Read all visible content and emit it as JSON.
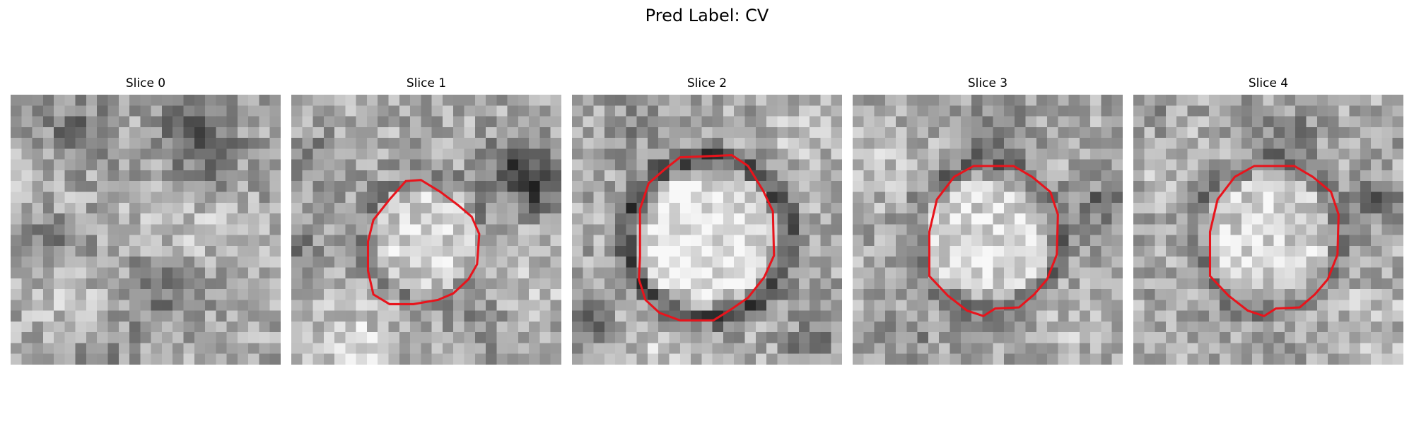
{
  "figure": {
    "title": "Pred Label: CV",
    "contour_color": "#e8141c"
  },
  "slices": [
    {
      "title": "Slice 0",
      "has_contour": false,
      "contour": [],
      "seed": 11,
      "ring_darkness": 0,
      "core_brightness": 0,
      "dark_spots": [
        {
          "x": 6,
          "y": 4,
          "r": 3.5,
          "s": 60
        },
        {
          "x": 17,
          "y": 2,
          "r": 3.0,
          "s": 60
        },
        {
          "x": 18,
          "y": 6,
          "r": 3.5,
          "s": 55
        },
        {
          "x": 4,
          "y": 13,
          "r": 4.0,
          "s": 35
        },
        {
          "x": 14,
          "y": 18,
          "r": 4.0,
          "s": 45
        },
        {
          "x": 8,
          "y": 24,
          "r": 3.0,
          "s": 40
        }
      ],
      "bright_spots": [
        {
          "x": 4,
          "y": 8,
          "r": 4.0,
          "s": 30
        },
        {
          "x": 16,
          "y": 13,
          "r": 4.5,
          "s": 35
        },
        {
          "x": 6,
          "y": 19,
          "r": 3.5,
          "s": 30
        }
      ]
    },
    {
      "title": "Slice 1",
      "has_contour": true,
      "contour": [
        [
          10.6,
          8.0
        ],
        [
          12.0,
          7.9
        ],
        [
          13.8,
          9.0
        ],
        [
          15.4,
          10.2
        ],
        [
          16.7,
          11.3
        ],
        [
          17.4,
          12.9
        ],
        [
          17.2,
          15.7
        ],
        [
          16.4,
          17.1
        ],
        [
          15.0,
          18.4
        ],
        [
          13.6,
          19.0
        ],
        [
          11.3,
          19.4
        ],
        [
          9.1,
          19.4
        ],
        [
          7.6,
          18.5
        ],
        [
          7.1,
          16.3
        ],
        [
          7.1,
          13.6
        ],
        [
          7.6,
          11.6
        ],
        [
          9.1,
          9.7
        ]
      ],
      "seed": 23,
      "ring_darkness": 35,
      "core_brightness": 45,
      "dark_spots": [
        {
          "x": 21,
          "y": 7,
          "r": 2.8,
          "s": 95
        },
        {
          "x": 23,
          "y": 9,
          "r": 2.2,
          "s": 60
        },
        {
          "x": 3,
          "y": 5,
          "r": 3.0,
          "s": 35
        },
        {
          "x": 1,
          "y": 15,
          "r": 2.5,
          "s": 40
        },
        {
          "x": 18,
          "y": 21,
          "r": 3.0,
          "s": 30
        }
      ],
      "bright_spots": [
        {
          "x": 6,
          "y": 23,
          "r": 4.5,
          "s": 40
        },
        {
          "x": 21,
          "y": 17,
          "r": 4.0,
          "s": 35
        },
        {
          "x": 4,
          "y": 2,
          "r": 3.0,
          "s": 20
        }
      ]
    },
    {
      "title": "Slice 2",
      "has_contour": true,
      "contour": [
        [
          10.0,
          5.8
        ],
        [
          14.8,
          5.6
        ],
        [
          16.3,
          6.6
        ],
        [
          17.7,
          8.9
        ],
        [
          18.6,
          10.8
        ],
        [
          18.7,
          14.9
        ],
        [
          17.8,
          16.9
        ],
        [
          16.3,
          18.8
        ],
        [
          14.7,
          19.9
        ],
        [
          13.1,
          20.9
        ],
        [
          10.0,
          20.9
        ],
        [
          8.1,
          20.2
        ],
        [
          6.8,
          19.0
        ],
        [
          6.2,
          17.1
        ],
        [
          6.3,
          15.0
        ],
        [
          6.3,
          10.6
        ],
        [
          7.1,
          8.2
        ],
        [
          8.6,
          6.9
        ]
      ],
      "seed": 37,
      "ring_darkness": 95,
      "core_brightness": 60,
      "dark_spots": [
        {
          "x": 1,
          "y": 21,
          "r": 2.5,
          "s": 80
        },
        {
          "x": 22,
          "y": 23,
          "r": 2.0,
          "s": 60
        },
        {
          "x": 5,
          "y": 3,
          "r": 2.5,
          "s": 30
        }
      ],
      "bright_spots": [
        {
          "x": 8,
          "y": 23,
          "r": 4.0,
          "s": 35
        },
        {
          "x": 21,
          "y": 4,
          "r": 3.5,
          "s": 25
        }
      ]
    },
    {
      "title": "Slice 3",
      "has_contour": true,
      "contour": [
        [
          11.2,
          6.6
        ],
        [
          14.9,
          6.6
        ],
        [
          16.6,
          7.6
        ],
        [
          18.3,
          9.0
        ],
        [
          19.0,
          11.1
        ],
        [
          18.9,
          14.8
        ],
        [
          18.0,
          17.1
        ],
        [
          16.8,
          18.5
        ],
        [
          15.4,
          19.7
        ],
        [
          13.2,
          19.8
        ],
        [
          12.1,
          20.5
        ],
        [
          10.6,
          20.0
        ],
        [
          8.8,
          18.6
        ],
        [
          7.1,
          16.8
        ],
        [
          7.1,
          12.7
        ],
        [
          7.8,
          9.7
        ],
        [
          9.4,
          7.6
        ]
      ],
      "seed": 53,
      "ring_darkness": 55,
      "core_brightness": 45,
      "dark_spots": [
        {
          "x": 23,
          "y": 10,
          "r": 1.6,
          "s": 75
        },
        {
          "x": 14,
          "y": 4,
          "r": 3.0,
          "s": 40
        },
        {
          "x": 5,
          "y": 23,
          "r": 3.0,
          "s": 30
        }
      ],
      "bright_spots": [
        {
          "x": 3,
          "y": 6,
          "r": 3.5,
          "s": 25
        },
        {
          "x": 22,
          "y": 21,
          "r": 3.5,
          "s": 25
        }
      ]
    },
    {
      "title": "Slice 4",
      "has_contour": true,
      "contour": [
        [
          11.2,
          6.6
        ],
        [
          14.9,
          6.6
        ],
        [
          16.6,
          7.6
        ],
        [
          18.3,
          9.0
        ],
        [
          19.0,
          11.1
        ],
        [
          18.9,
          14.8
        ],
        [
          18.0,
          17.1
        ],
        [
          16.8,
          18.5
        ],
        [
          15.4,
          19.7
        ],
        [
          13.2,
          19.8
        ],
        [
          12.1,
          20.5
        ],
        [
          10.6,
          20.0
        ],
        [
          8.8,
          18.6
        ],
        [
          7.1,
          16.8
        ],
        [
          7.1,
          12.7
        ],
        [
          7.8,
          9.7
        ],
        [
          9.4,
          7.6
        ]
      ],
      "seed": 71,
      "ring_darkness": 50,
      "core_brightness": 45,
      "dark_spots": [
        {
          "x": 23,
          "y": 10,
          "r": 1.8,
          "s": 85
        },
        {
          "x": 14,
          "y": 4,
          "r": 3.0,
          "s": 40
        },
        {
          "x": 2,
          "y": 2,
          "r": 2.5,
          "s": 25
        }
      ],
      "bright_spots": [
        {
          "x": 3,
          "y": 6,
          "r": 3.5,
          "s": 25
        },
        {
          "x": 22,
          "y": 21,
          "r": 3.5,
          "s": 25
        }
      ]
    }
  ]
}
